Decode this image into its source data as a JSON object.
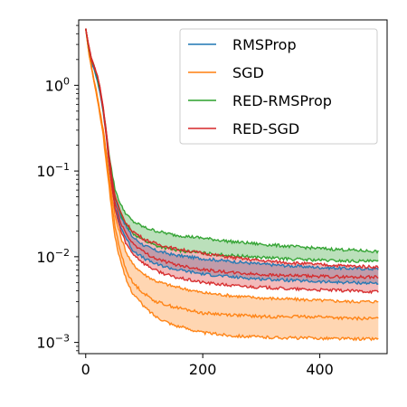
{
  "chart_data": {
    "type": "line",
    "title": "",
    "xlabel": "",
    "ylabel": "",
    "x_scale": "linear",
    "y_scale": "log",
    "xlim": [
      -12,
      515
    ],
    "ylim": [
      0.00074,
      5.8
    ],
    "x_ticks": [
      {
        "value": 0,
        "label": "0"
      },
      {
        "value": 200,
        "label": "200"
      },
      {
        "value": 400,
        "label": "400"
      }
    ],
    "y_ticks": [
      {
        "value": 0.001,
        "base": "10",
        "exp": "−3"
      },
      {
        "value": 0.01,
        "base": "10",
        "exp": "−2"
      },
      {
        "value": 0.1,
        "base": "10",
        "exp": "−1"
      },
      {
        "value": 1,
        "base": "10",
        "exp": "0"
      }
    ],
    "grid": false,
    "legend_position": "top-right",
    "series": [
      {
        "name": "RMSProp",
        "color": "#1f77b4",
        "x": [
          0,
          5,
          10,
          15,
          20,
          25,
          30,
          35,
          40,
          45,
          50,
          60,
          70,
          80,
          100,
          120,
          150,
          200,
          250,
          300,
          350,
          400,
          450,
          500
        ],
        "lines": [
          [
            4.6,
            2.8,
            1.9,
            1.5,
            1.15,
            0.78,
            0.5,
            0.28,
            0.14,
            0.08,
            0.05,
            0.03,
            0.022,
            0.017,
            0.0135,
            0.0118,
            0.0105,
            0.0095,
            0.0088,
            0.0082,
            0.0078,
            0.0075,
            0.0073,
            0.0072
          ],
          [
            4.6,
            2.8,
            1.9,
            1.5,
            1.15,
            0.78,
            0.48,
            0.26,
            0.12,
            0.065,
            0.038,
            0.022,
            0.016,
            0.012,
            0.0095,
            0.0082,
            0.0072,
            0.0063,
            0.0058,
            0.0055,
            0.0053,
            0.0051,
            0.005,
            0.0049
          ]
        ]
      },
      {
        "name": "SGD",
        "color": "#ff7f0e",
        "x": [
          0,
          5,
          10,
          15,
          20,
          25,
          30,
          35,
          40,
          45,
          50,
          60,
          70,
          80,
          100,
          120,
          150,
          200,
          250,
          300,
          350,
          400,
          450,
          500
        ],
        "lines": [
          [
            4.6,
            2.5,
            1.6,
            1.1,
            0.75,
            0.48,
            0.3,
            0.17,
            0.09,
            0.05,
            0.03,
            0.017,
            0.011,
            0.0082,
            0.0062,
            0.0052,
            0.0045,
            0.0038,
            0.0035,
            0.0033,
            0.0032,
            0.0031,
            0.003,
            0.003
          ],
          [
            4.6,
            2.5,
            1.6,
            1.05,
            0.7,
            0.45,
            0.27,
            0.15,
            0.075,
            0.04,
            0.022,
            0.011,
            0.0068,
            0.005,
            0.0037,
            0.003,
            0.0026,
            0.0022,
            0.0021,
            0.002,
            0.002,
            0.002,
            0.0019,
            0.0019
          ],
          [
            4.6,
            2.5,
            1.6,
            1.05,
            0.68,
            0.43,
            0.25,
            0.13,
            0.065,
            0.032,
            0.017,
            0.0085,
            0.0052,
            0.0038,
            0.0026,
            0.002,
            0.0016,
            0.0013,
            0.0012,
            0.00115,
            0.00113,
            0.00112,
            0.0011,
            0.0011
          ]
        ]
      },
      {
        "name": "RED-RMSProp",
        "color": "#2ca02c",
        "x": [
          0,
          5,
          10,
          15,
          20,
          25,
          30,
          35,
          40,
          45,
          50,
          60,
          70,
          80,
          100,
          120,
          150,
          200,
          250,
          300,
          350,
          400,
          450,
          500
        ],
        "lines": [
          [
            4.6,
            2.8,
            2.0,
            1.6,
            1.25,
            0.85,
            0.52,
            0.3,
            0.16,
            0.095,
            0.062,
            0.04,
            0.031,
            0.026,
            0.022,
            0.02,
            0.018,
            0.0165,
            0.015,
            0.014,
            0.0132,
            0.0125,
            0.012,
            0.0115
          ],
          [
            4.6,
            2.8,
            2.0,
            1.6,
            1.2,
            0.82,
            0.5,
            0.28,
            0.14,
            0.08,
            0.05,
            0.031,
            0.023,
            0.019,
            0.0155,
            0.0135,
            0.012,
            0.011,
            0.0103,
            0.0098,
            0.0094,
            0.0091,
            0.0089,
            0.0088
          ]
        ]
      },
      {
        "name": "RED-SGD",
        "color": "#d62728",
        "x": [
          0,
          5,
          10,
          15,
          20,
          25,
          30,
          35,
          40,
          45,
          50,
          60,
          70,
          80,
          100,
          120,
          150,
          200,
          250,
          300,
          350,
          400,
          450,
          500
        ],
        "lines": [
          [
            4.6,
            2.9,
            2.0,
            1.6,
            1.3,
            0.9,
            0.55,
            0.3,
            0.15,
            0.085,
            0.052,
            0.032,
            0.024,
            0.02,
            0.016,
            0.0142,
            0.0125,
            0.011,
            0.0098,
            0.009,
            0.0085,
            0.0081,
            0.0078,
            0.0076
          ],
          [
            4.6,
            2.9,
            2.0,
            1.6,
            1.3,
            0.88,
            0.53,
            0.28,
            0.13,
            0.072,
            0.043,
            0.025,
            0.018,
            0.0145,
            0.0112,
            0.0095,
            0.0082,
            0.0071,
            0.0065,
            0.0062,
            0.006,
            0.0059,
            0.0058,
            0.0058
          ],
          [
            4.6,
            2.9,
            2.0,
            1.6,
            1.3,
            0.86,
            0.5,
            0.26,
            0.12,
            0.063,
            0.036,
            0.02,
            0.0138,
            0.011,
            0.0083,
            0.0069,
            0.0058,
            0.005,
            0.0046,
            0.0044,
            0.0042,
            0.0041,
            0.004,
            0.0039
          ]
        ]
      }
    ]
  }
}
